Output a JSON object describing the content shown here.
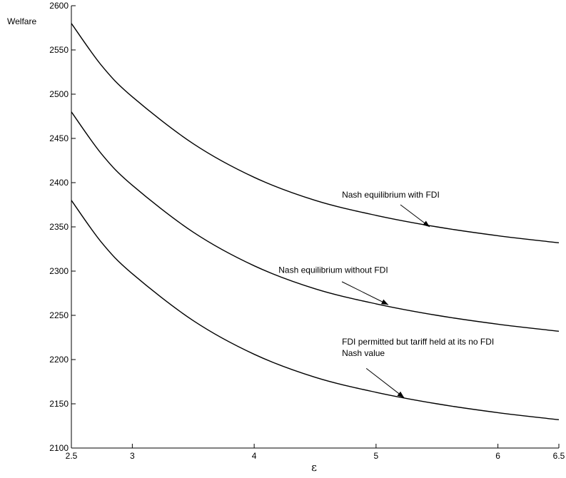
{
  "chart_data": {
    "type": "line",
    "title": "",
    "xlabel": "ε",
    "ylabel": "Welfare",
    "xlim": [
      2.5,
      6.5
    ],
    "ylim": [
      2100,
      2600
    ],
    "xticks": [
      2.5,
      3,
      4,
      5,
      6,
      6.5
    ],
    "xtick_labels": [
      "2.5",
      "3",
      "4",
      "5",
      "6",
      "6.5"
    ],
    "yticks": [
      2100,
      2150,
      2200,
      2250,
      2300,
      2350,
      2400,
      2450,
      2500,
      2550,
      2600
    ],
    "ytick_labels": [
      "2100",
      "2150",
      "2200",
      "2250",
      "2300",
      "2350",
      "2400",
      "2450",
      "2500",
      "2550",
      "2600"
    ],
    "grid": false,
    "x": [
      2.5,
      2.75,
      3,
      3.5,
      4,
      4.5,
      5,
      5.5,
      6,
      6.5
    ],
    "series": [
      {
        "values": [
          2580,
          2532,
          2497,
          2444,
          2406,
          2380,
          2363,
          2350,
          2340,
          2332
        ]
      },
      {
        "values": [
          2480,
          2432,
          2397,
          2344,
          2306,
          2280,
          2263,
          2250,
          2240,
          2232
        ]
      },
      {
        "values": [
          2380,
          2332,
          2297,
          2244,
          2206,
          2180,
          2163,
          2150,
          2140,
          2132
        ]
      }
    ],
    "annotations": [
      {
        "lines": [
          "Nash equilibrium with FDI"
        ],
        "text_at": [
          4.72,
          2383
        ],
        "arrow_from": [
          5.2,
          2375
        ],
        "arrow_to": [
          5.44,
          2350
        ],
        "series_index": 0
      },
      {
        "lines": [
          "Nash equilibrium without FDI"
        ],
        "text_at": [
          4.2,
          2298
        ],
        "arrow_from": [
          4.72,
          2288
        ],
        "arrow_to": [
          5.1,
          2262
        ],
        "series_index": 1
      },
      {
        "lines": [
          "FDI permitted but tariff held at its no FDI",
          "Nash value"
        ],
        "text_at": [
          4.72,
          2217
        ],
        "arrow_from": [
          4.92,
          2190
        ],
        "arrow_to": [
          5.23,
          2157
        ],
        "series_index": 2
      }
    ]
  }
}
